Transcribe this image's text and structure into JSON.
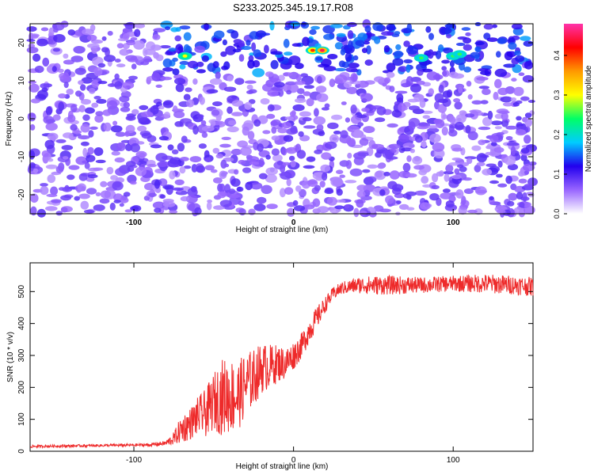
{
  "chart_data": [
    {
      "type": "heatmap",
      "title": "S233.2025.345.19.17.R08",
      "xlabel": "Height of straight line (km)",
      "ylabel": "Frequency (Hz)",
      "xlim": [
        -165,
        150
      ],
      "ylim": [
        -25,
        25
      ],
      "xticks": [
        -100,
        0,
        100
      ],
      "xtick_labels": [
        "-100",
        "0",
        "100"
      ],
      "yticks": [
        -20,
        -10,
        0,
        10,
        20
      ],
      "ytick_labels": [
        "-20",
        "-10",
        "0",
        "10",
        "20"
      ],
      "grid": false,
      "colorbar": {
        "label": "Normalized spectral amplitude",
        "range": [
          0.0,
          0.48
        ],
        "ticks": [
          0.0,
          0.1,
          0.2,
          0.3,
          0.4
        ],
        "tick_labels": [
          "0.0",
          "0.1",
          "0.2",
          "0.3",
          "0.4"
        ],
        "colormap": [
          "#ffffff",
          "#9966ff",
          "#2200ee",
          "#00ccff",
          "#00ff66",
          "#ffff00",
          "#ff9900",
          "#ff0000",
          "#ff33aa"
        ]
      },
      "features": {
        "strong_band_frequency_hz": [
          12,
          24
        ],
        "strong_band_height_km": [
          -80,
          150
        ],
        "hotspots": [
          {
            "x": -68,
            "y": 16.5,
            "value": 0.3
          },
          {
            "x": 12,
            "y": 18,
            "value": 0.4
          },
          {
            "x": 18,
            "y": 18,
            "value": 0.45
          },
          {
            "x": 80,
            "y": 16,
            "value": 0.25
          },
          {
            "x": 100,
            "y": 16.5,
            "value": 0.25
          },
          {
            "x": 104,
            "y": 17,
            "value": 0.25
          }
        ]
      }
    },
    {
      "type": "line",
      "xlabel": "Height of straight line (km)",
      "ylabel": "SNR (10 * v/v)",
      "xlim": [
        -165,
        150
      ],
      "ylim": [
        0,
        590
      ],
      "xticks": [
        -100,
        0,
        100
      ],
      "xtick_labels": [
        "-100",
        "0",
        "100"
      ],
      "yticks": [
        0,
        100,
        200,
        300,
        400,
        500
      ],
      "ytick_labels": [
        "0",
        "100",
        "200",
        "300",
        "400",
        "500"
      ],
      "grid": false,
      "series": [
        {
          "color": "#ee2a2a",
          "x": [
            -165,
            -120,
            -90,
            -80,
            -75,
            -70,
            -65,
            -60,
            -55,
            -50,
            -45,
            -40,
            -35,
            -30,
            -25,
            -20,
            -15,
            -10,
            -5,
            0,
            5,
            10,
            15,
            20,
            25,
            30,
            40,
            50,
            60,
            80,
            100,
            120,
            140,
            150
          ],
          "values": [
            15,
            18,
            20,
            25,
            40,
            70,
            85,
            110,
            120,
            155,
            170,
            175,
            170,
            210,
            230,
            260,
            265,
            275,
            275,
            300,
            330,
            380,
            420,
            460,
            495,
            510,
            520,
            520,
            520,
            520,
            525,
            525,
            520,
            515
          ],
          "noise_amplitude": [
            4,
            4,
            5,
            8,
            20,
            45,
            50,
            60,
            75,
            90,
            120,
            120,
            110,
            100,
            90,
            80,
            70,
            60,
            50,
            45,
            40,
            40,
            35,
            25,
            20,
            20,
            25,
            30,
            30,
            25,
            25,
            30,
            30,
            30
          ]
        }
      ]
    }
  ]
}
